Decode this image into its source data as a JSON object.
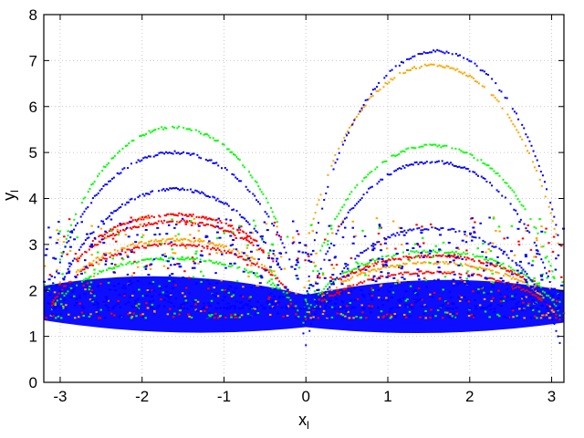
{
  "chart_data": {
    "type": "scatter",
    "title": "",
    "xlabel": "x",
    "xlabel_sub": "l",
    "ylabel": "y",
    "ylabel_sub": "l",
    "xlim": [
      -3.2,
      3.15
    ],
    "ylim": [
      0,
      8
    ],
    "x_ticks": [
      -3,
      -2,
      -1,
      0,
      1,
      2,
      3
    ],
    "y_ticks": [
      0,
      1,
      2,
      3,
      4,
      5,
      6,
      7,
      8
    ],
    "grid": true,
    "legend": "none",
    "series": [
      {
        "color": "#ff0000",
        "description_points": "dense trajectory arcs, concentrated near y 1.3-3.6",
        "arcs": [
          {
            "cx": -1.6,
            "cy": 1.0,
            "rx": 1.6,
            "ry": 2.65,
            "x_from": -2.6,
            "x_to": -0.6
          },
          {
            "cx": -1.6,
            "cy": 1.0,
            "rx": 1.6,
            "ry": 2.5,
            "x_from": -2.8,
            "x_to": -0.4
          },
          {
            "cx": -1.6,
            "cy": 1.0,
            "rx": 1.6,
            "ry": 2.0,
            "x_from": -3.1,
            "x_to": -0.2
          },
          {
            "cx": 1.55,
            "cy": 1.0,
            "rx": 1.6,
            "ry": 1.75,
            "x_from": 0.4,
            "x_to": 2.7
          },
          {
            "cx": 1.55,
            "cy": 1.0,
            "rx": 1.6,
            "ry": 1.4,
            "x_from": 0.0,
            "x_to": 3.1
          }
        ]
      },
      {
        "color": "#ffa500",
        "arcs": [
          {
            "cx": 1.55,
            "cy": 0.0,
            "rx": 1.7,
            "ry": 6.9,
            "x_from": 0.05,
            "x_to": 3.1
          },
          {
            "cx": -1.6,
            "cy": 1.0,
            "rx": 1.6,
            "ry": 2.1,
            "x_from": -2.8,
            "x_to": -0.4
          },
          {
            "cx": 1.55,
            "cy": 1.0,
            "rx": 1.6,
            "ry": 1.6,
            "x_from": 0.2,
            "x_to": 2.9
          }
        ]
      },
      {
        "color": "#00ff00",
        "arcs": [
          {
            "cx": -1.6,
            "cy": 0.0,
            "rx": 1.6,
            "ry": 5.55,
            "x_from": -3.0,
            "x_to": -0.35
          },
          {
            "cx": 1.55,
            "cy": 0.0,
            "rx": 1.65,
            "ry": 5.15,
            "x_from": 0.0,
            "x_to": 3.1
          },
          {
            "cx": -1.6,
            "cy": 1.0,
            "rx": 1.6,
            "ry": 1.7,
            "x_from": -3.1,
            "x_to": -0.1
          },
          {
            "cx": 1.55,
            "cy": 1.0,
            "rx": 1.6,
            "ry": 1.85,
            "x_from": -0.1,
            "x_to": 3.1
          }
        ]
      },
      {
        "color": "#0000ff",
        "arcs": [
          {
            "cx": 1.6,
            "cy": 0.0,
            "rx": 1.65,
            "ry": 7.2,
            "x_from": -0.1,
            "x_to": 3.1
          },
          {
            "cx": -1.6,
            "cy": 0.0,
            "rx": 1.65,
            "ry": 5.0,
            "x_from": -3.15,
            "x_to": -0.2
          },
          {
            "cx": -1.6,
            "cy": 0.0,
            "rx": 1.6,
            "ry": 4.2,
            "x_from": -3.0,
            "x_to": -0.3
          },
          {
            "cx": 1.55,
            "cy": 0.0,
            "rx": 1.6,
            "ry": 4.8,
            "x_from": 0.1,
            "x_to": 3.0
          },
          {
            "cx": 1.55,
            "cy": 0.0,
            "rx": 1.6,
            "ry": 3.35,
            "x_from": 0.0,
            "x_to": 3.1
          }
        ]
      }
    ],
    "dense_band": {
      "color": "#0000ff",
      "y_from": 1.0,
      "y_to": 1.9,
      "x_from": -3.2,
      "x_to": 3.15
    }
  }
}
